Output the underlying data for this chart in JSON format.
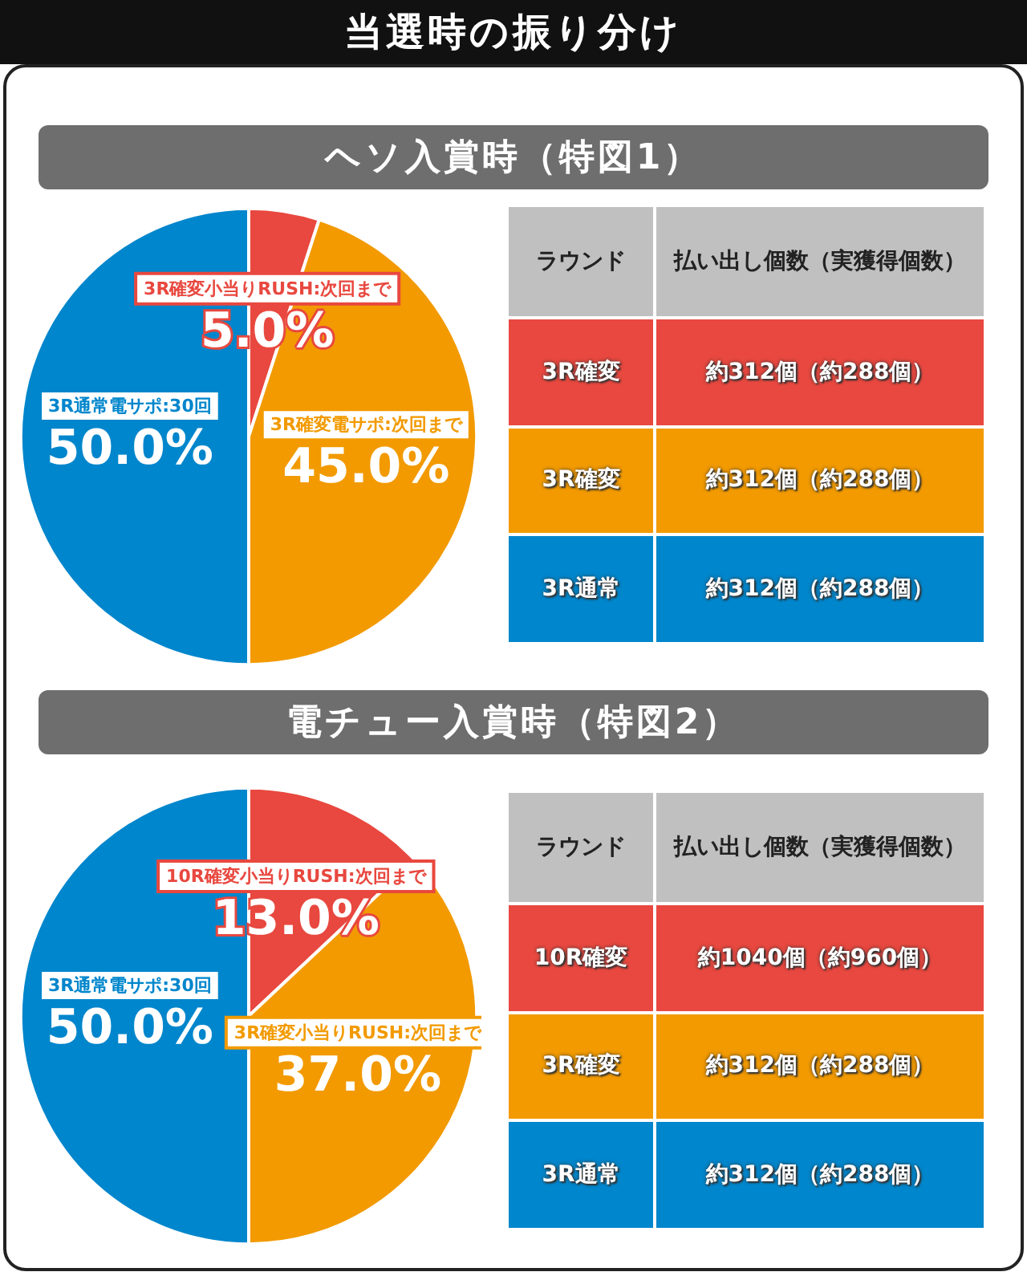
{
  "chart_data": [
    {
      "type": "pie",
      "title": "当選時の振り分け",
      "subtitle": "ヘソ入賞時（特図1）",
      "categories": [
        "3R確変小当りRUSH:次回まで",
        "3R確変電サポ:次回まで",
        "3R通常電サポ:30回"
      ],
      "values": [
        5,
        45,
        50
      ],
      "value_labels": [
        "5.0%",
        "45.0%",
        "50.0%"
      ],
      "colors": [
        "#e8483f",
        "#f29a00",
        "#0086cc"
      ]
    },
    {
      "type": "other",
      "xlabel": "ラウンド",
      "ylabel": "払い出し個数（実獲得個数）",
      "categories": [
        "3R確変",
        "3R確変",
        "3R通常"
      ],
      "value_labels": [
        "約312個（約288個）",
        "約312個（約288個）",
        "約312個（約288個）"
      ],
      "colors": [
        "#e8483f",
        "#f29a00",
        "#0086cc"
      ]
    },
    {
      "type": "pie",
      "title": "電チュー入賞時（特図2）",
      "categories": [
        "10R確変小当りRUSH:次回まで",
        "3R確変小当りRUSH:次回まで",
        "3R通常電サポ:30回"
      ],
      "values": [
        13,
        37,
        50
      ],
      "value_labels": [
        "13.0%",
        "37.0%",
        "50.0%"
      ],
      "colors": [
        "#e8483f",
        "#f29a00",
        "#0086cc"
      ]
    },
    {
      "type": "other",
      "xlabel": "ラウンド",
      "ylabel": "払い出し個数（実獲得個数）",
      "categories": [
        "10R確変",
        "3R確変",
        "3R通常"
      ],
      "value_labels": [
        "約1040個（約960個）",
        "約312個（約288個）",
        "約312個（約288個）"
      ],
      "colors": [
        "#e8483f",
        "#f29a00",
        "#0086cc"
      ]
    }
  ]
}
